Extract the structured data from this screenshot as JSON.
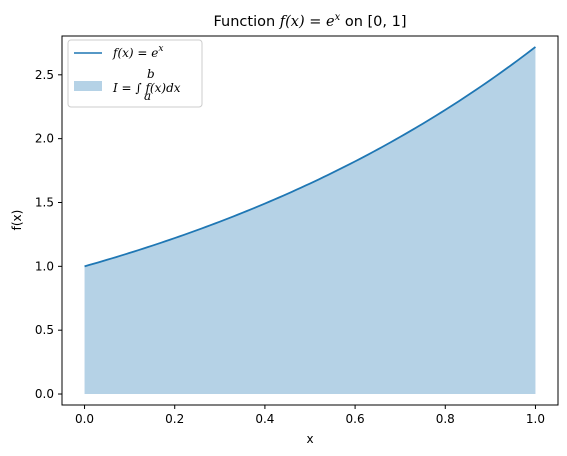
{
  "chart_data": {
    "type": "area",
    "title": {
      "prefix": "Function ",
      "math": "f(x) = e",
      "superscript": "x",
      "suffix": " on [0, 1]"
    },
    "xlabel": "x",
    "ylabel": "f(x)",
    "xlim": [
      -0.05,
      1.05
    ],
    "ylim": [
      -0.086,
      2.804
    ],
    "x_ticks": [
      0.0,
      0.2,
      0.4,
      0.6,
      0.8,
      1.0
    ],
    "x_tick_labels": [
      "0.0",
      "0.2",
      "0.4",
      "0.6",
      "0.8",
      "1.0"
    ],
    "y_ticks": [
      0.0,
      0.5,
      1.0,
      1.5,
      2.0,
      2.5
    ],
    "y_tick_labels": [
      "0.0",
      "0.5",
      "1.0",
      "1.5",
      "2.0",
      "2.5"
    ],
    "grid": false,
    "legend_placement": "top-left",
    "series": [
      {
        "kind": "line",
        "label_math": "f(x) = e",
        "label_superscript": "x",
        "color": "#1f77b4",
        "x": [
          0.0,
          0.1,
          0.2,
          0.3,
          0.4,
          0.5,
          0.6,
          0.7,
          0.8,
          0.9,
          1.0
        ],
        "y": [
          1.0,
          1.105,
          1.221,
          1.35,
          1.492,
          1.649,
          1.822,
          2.014,
          2.226,
          2.46,
          2.718
        ]
      },
      {
        "kind": "fill",
        "label_math": "I = ∫ f(x)dx",
        "label_upper": "b",
        "label_lower": "a",
        "color": "#1f77b4",
        "opacity": 0.33,
        "x": [
          0.0,
          0.1,
          0.2,
          0.3,
          0.4,
          0.5,
          0.6,
          0.7,
          0.8,
          0.9,
          1.0
        ],
        "y": [
          1.0,
          1.105,
          1.221,
          1.35,
          1.492,
          1.649,
          1.822,
          2.014,
          2.226,
          2.46,
          2.718
        ],
        "baseline": 0.0
      }
    ]
  }
}
